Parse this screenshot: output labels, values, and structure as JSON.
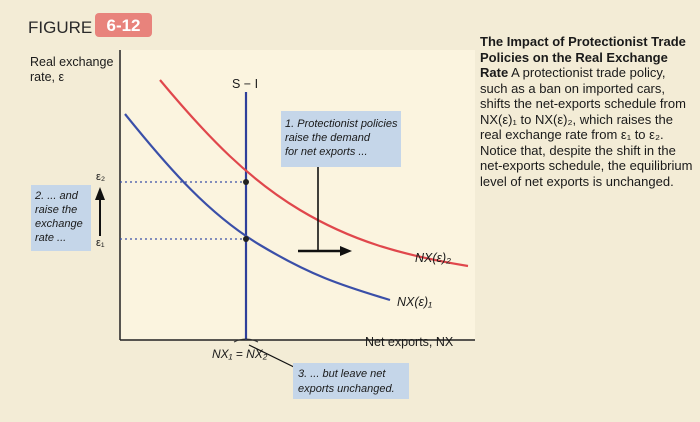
{
  "figure": {
    "label_word": "FIGURE",
    "label_number": "6-12"
  },
  "axes": {
    "y_label_line1": "Real exchange",
    "y_label_line2": "rate, ε",
    "x_label": "Net exports, NX",
    "x_tick": "NX₁ = NX₂",
    "y_tick_high": "ε₂",
    "y_tick_low": "ε₁"
  },
  "curves": {
    "saving_investment_label": "S − I",
    "nx1_label": "NX(ε)₁",
    "nx2_label": "NX(ε)₂",
    "nx1_color": "#3a4fa8",
    "nx2_color": "#e0474c",
    "si_color": "#2e3f9a"
  },
  "annotations": {
    "box1_line1": "1. Protectionist policies",
    "box1_line2": "raise the demand",
    "box1_line3": "for net exports ...",
    "box2_line1": "2. ... and",
    "box2_line2": "raise the",
    "box2_line3": "exchange",
    "box2_line4": "rate ...",
    "box3_line1": "3. ... but leave net",
    "box3_line2": "exports unchanged."
  },
  "caption": {
    "title": "The Impact of Protectionist Trade Policies on the Real Exchange Rate",
    "body": "A protectionist trade policy, such as a ban on imported cars, shifts the net-exports schedule from NX(ε)₁ to NX(ε)₂, which raises the real exchange rate from ε₁ to ε₂. Notice that, despite the shift in the net-exports schedule, the equilibrium level of net exports is unchanged."
  },
  "colors": {
    "accent": "#e8837c",
    "annotation_box": "#c5d6e9",
    "panel": "#fbf4df"
  }
}
